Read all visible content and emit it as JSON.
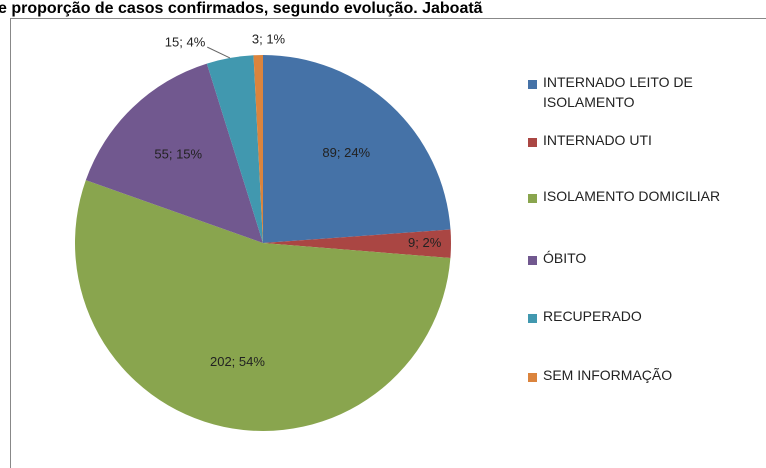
{
  "chart_data": {
    "type": "pie",
    "title": "e proporção de casos confirmados, segundo evolução. Jaboatã",
    "categories": [
      "INTERNADO LEITO DE ISOLAMENTO",
      "INTERNADO UTI",
      "ISOLAMENTO DOMICILIAR",
      "ÓBITO",
      "RECUPERADO",
      "SEM INFORMAÇÃO"
    ],
    "values": [
      89,
      9,
      202,
      55,
      15,
      3
    ],
    "value_labels": [
      "89; 24%",
      "9; 2%",
      "202; 54%",
      "55; 15%",
      "15; 4%",
      "3; 1%"
    ],
    "colors": [
      "#4572a7",
      "#aa4643",
      "#89a54e",
      "#71588f",
      "#4198af",
      "#db843d"
    ],
    "legend": "right"
  }
}
